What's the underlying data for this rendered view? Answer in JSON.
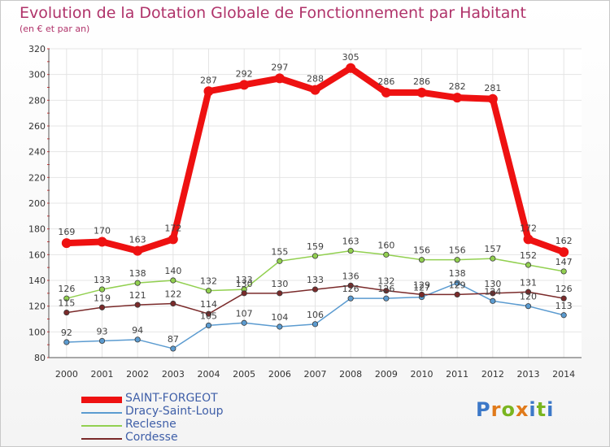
{
  "header": {
    "title": "Evolution de la Dotation Globale de Fonctionnement par Habitant",
    "subtitle": "(en € et par an)"
  },
  "brand": {
    "letters": [
      "P",
      "r",
      "o",
      "x",
      "i",
      "t",
      "i"
    ],
    "colors": [
      "#3c78c8",
      "#e07a1a",
      "#7ab520",
      "#e07a1a",
      "#3c78c8",
      "#7ab520",
      "#3c78c8"
    ]
  },
  "chart_data": {
    "type": "line",
    "x": [
      "2000",
      "2001",
      "2002",
      "2003",
      "2004",
      "2005",
      "2006",
      "2007",
      "2008",
      "2009",
      "2010",
      "2011",
      "2012",
      "2013",
      "2014"
    ],
    "ylim": [
      80,
      320
    ],
    "yticks": [
      80,
      100,
      120,
      140,
      160,
      180,
      200,
      220,
      240,
      260,
      280,
      300,
      320
    ],
    "grid": true,
    "legend_position": "bottom-left",
    "series": [
      {
        "name": "SAINT-FORGEOT",
        "color": "#ee1111",
        "values": [
          169,
          170,
          163,
          172,
          287,
          292,
          297,
          288,
          305,
          286,
          286,
          282,
          281,
          172,
          162
        ]
      },
      {
        "name": "Dracy-Saint-Loup",
        "color": "#5b9bd0",
        "values": [
          92,
          93,
          94,
          87,
          105,
          107,
          104,
          106,
          126,
          126,
          127,
          138,
          124,
          120,
          113
        ]
      },
      {
        "name": "Reclesne",
        "color": "#92d050",
        "values": [
          126,
          133,
          138,
          140,
          132,
          133,
          155,
          159,
          163,
          160,
          156,
          156,
          157,
          152,
          147
        ]
      },
      {
        "name": "Cordesse",
        "color": "#7a2a2a",
        "values": [
          115,
          119,
          121,
          122,
          114,
          130,
          130,
          133,
          136,
          132,
          129,
          129,
          130,
          131,
          126
        ]
      }
    ]
  }
}
